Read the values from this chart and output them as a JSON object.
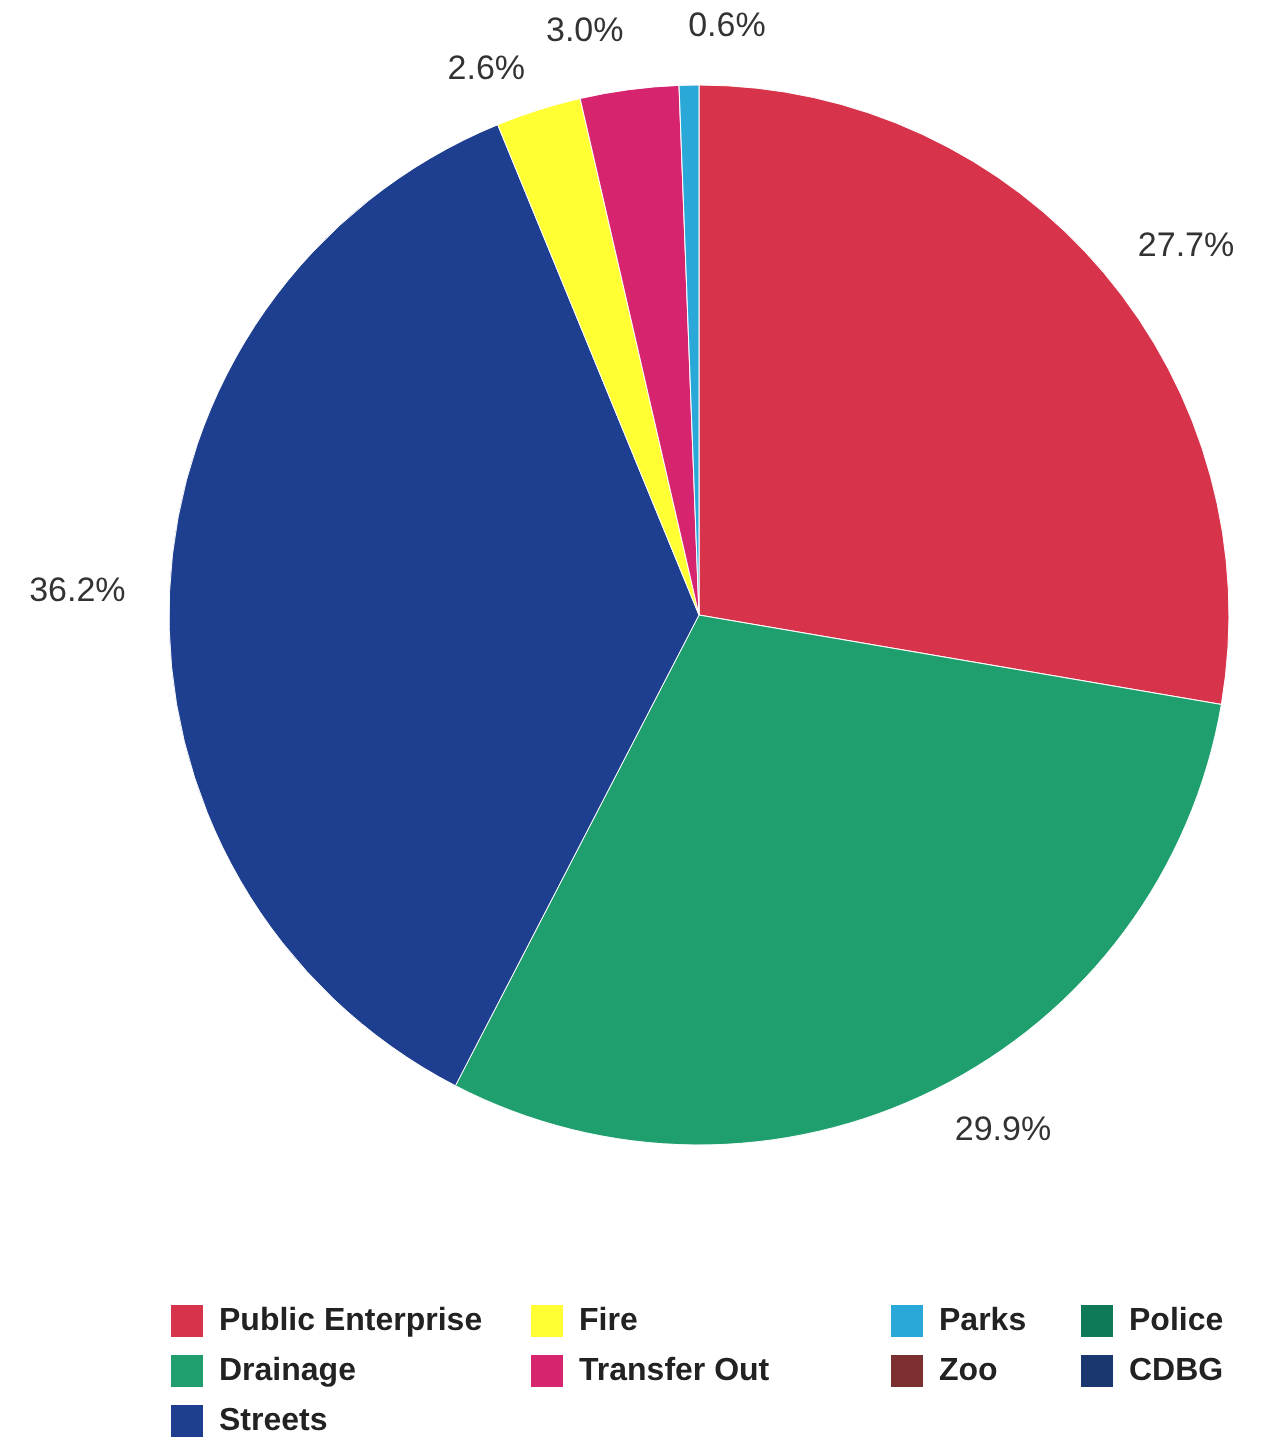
{
  "chart_data": {
    "type": "pie",
    "categories": [
      "Public Enterprise",
      "Drainage",
      "Streets",
      "Fire",
      "Transfer Out",
      "Parks",
      "Zoo",
      "Police",
      "CDBG"
    ],
    "values": [
      27.7,
      29.9,
      36.2,
      2.6,
      3.0,
      0.6,
      0,
      0,
      0
    ],
    "colors": [
      "#d7334a",
      "#1f9e6e",
      "#1e3f8f",
      "#ffff33",
      "#d6246e",
      "#2aa8d8",
      "#7b2f2f",
      "#0e7a5a",
      "#1a3770"
    ],
    "value_labels": [
      "27.7%",
      "29.9%",
      "36.2%",
      "2.6%",
      "3.0%",
      "0.6%",
      null,
      null,
      null
    ],
    "legend": "bottom"
  }
}
